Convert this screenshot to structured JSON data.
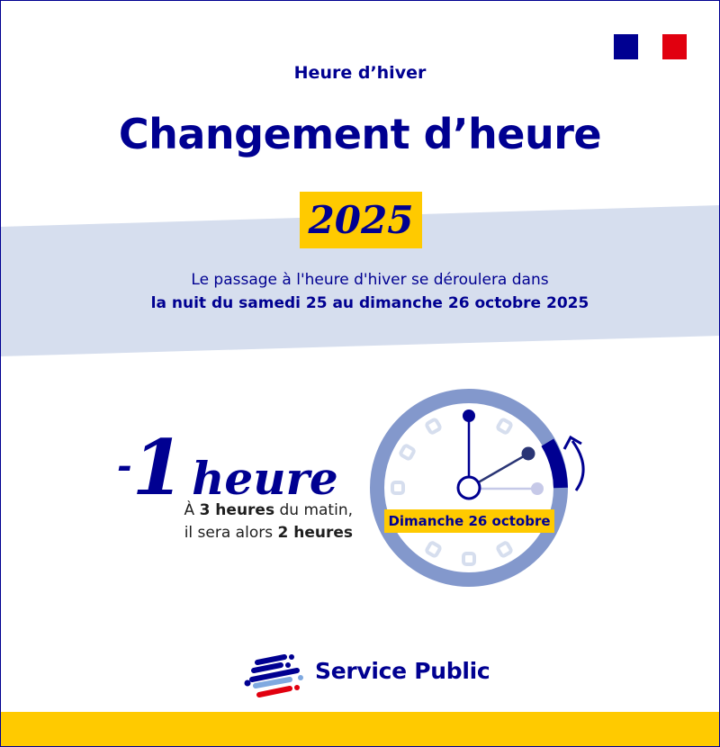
{
  "header": {
    "kicker": "Heure d’hiver",
    "title": "Changement d’heure",
    "year": "2025"
  },
  "intro": {
    "line1": "Le passage à l'heure d'hiver se déroulera dans",
    "line2": "la nuit du samedi 25 au dimanche 26 octobre 2025"
  },
  "change": {
    "sign": "-",
    "amount": "1",
    "unit": "heure",
    "detail1_pre": "À ",
    "detail1_bold": "3 heures",
    "detail1_post": " du matin,",
    "detail2_pre": "il sera alors ",
    "detail2_bold": "2 heures"
  },
  "clock": {
    "date_label": "Dimanche 26 octobre",
    "hour_before": 3,
    "hour_after": 2
  },
  "brand": {
    "name": "Service Public"
  },
  "colors": {
    "navy": "#000091",
    "yellow": "#FFCA00",
    "band": "#D6DEEE",
    "ring": "#8398CC",
    "flag_red": "#E1000F"
  },
  "icons": [
    "marianne-flag-logo",
    "clock-icon",
    "rewind-arrow-icon",
    "service-public-logo"
  ]
}
